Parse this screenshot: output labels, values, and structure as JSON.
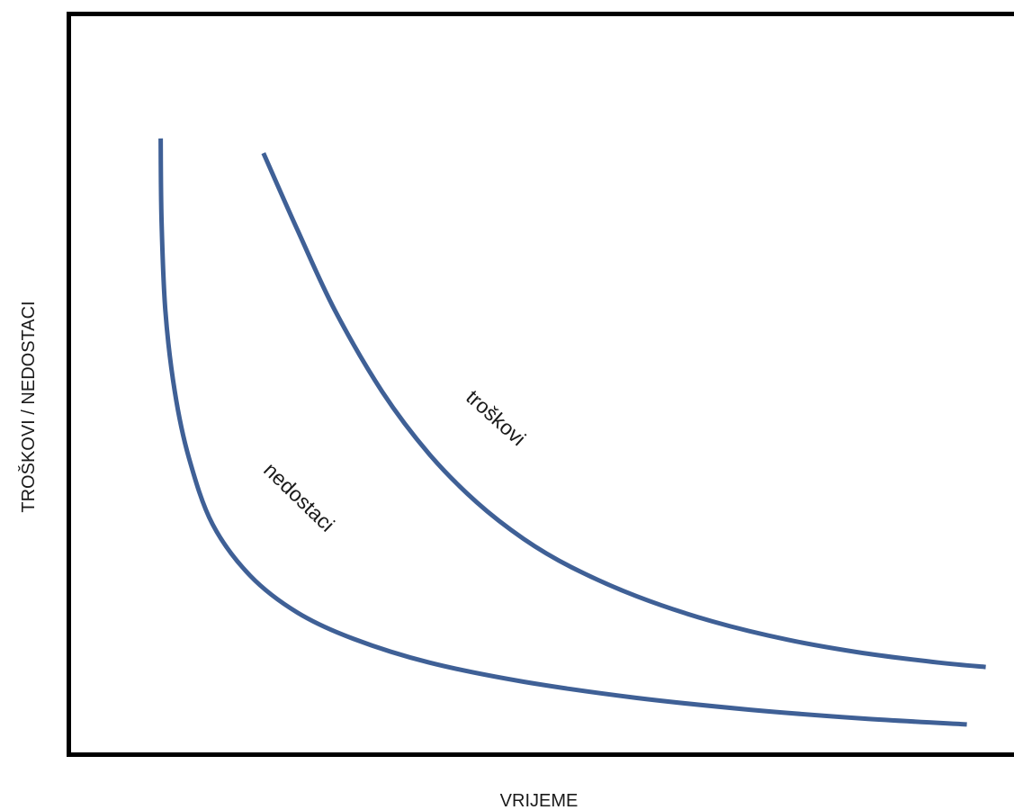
{
  "chart_data": {
    "type": "line",
    "xlabel": "VRIJEME",
    "ylabel": "TROŠKOVI / NEDOSTACI",
    "xlim": [
      0,
      1
    ],
    "ylim": [
      0,
      1
    ],
    "grid": false,
    "legend": "none",
    "series": [
      {
        "name": "troškovi",
        "color": "#3f6096",
        "x": [
          0.204,
          0.24,
          0.28,
          0.33,
          0.38,
          0.43,
          0.48,
          0.53,
          0.6,
          0.68,
          0.76,
          0.84,
          0.92,
          0.97
        ],
        "y": [
          0.814,
          0.71,
          0.6,
          0.49,
          0.405,
          0.34,
          0.29,
          0.252,
          0.212,
          0.178,
          0.153,
          0.135,
          0.122,
          0.116
        ]
      },
      {
        "name": "nedostaci",
        "color": "#3f6096",
        "x": [
          0.095,
          0.096,
          0.1,
          0.11,
          0.125,
          0.15,
          0.19,
          0.24,
          0.3,
          0.38,
          0.48,
          0.6,
          0.72,
          0.84,
          0.95
        ],
        "y": [
          0.834,
          0.72,
          0.6,
          0.49,
          0.4,
          0.31,
          0.24,
          0.19,
          0.154,
          0.122,
          0.096,
          0.074,
          0.058,
          0.046,
          0.038
        ]
      }
    ]
  }
}
